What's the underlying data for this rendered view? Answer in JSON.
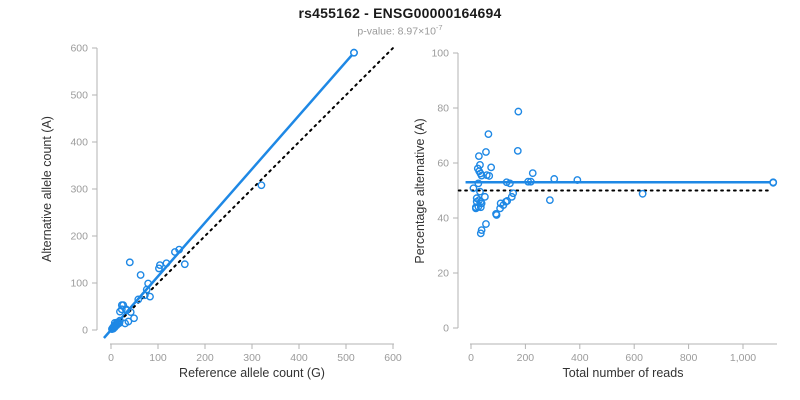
{
  "header": {
    "title": "rs455162 - ENSG00000164694",
    "pvalue_prefix": "p-value: 8.97×10",
    "pvalue_exponent": "-7"
  },
  "colors": {
    "accent_blue": "#1e88e5",
    "identity_line": "#000000",
    "axis": "#b3b3b3",
    "tick_text": "#9b9b9b",
    "label_text": "#333333"
  },
  "chart_data": [
    {
      "type": "scatter",
      "xlabel": "Reference allele count (G)",
      "ylabel": "Alternative allele count (A)",
      "xlim": [
        0,
        600
      ],
      "ylim": [
        0,
        600
      ],
      "grid": false,
      "xticks": [
        0,
        100,
        200,
        300,
        400,
        500,
        600
      ],
      "xtick_labels": [
        "0",
        "100",
        "200",
        "300",
        "400",
        "500",
        "600"
      ],
      "yticks": [
        0,
        100,
        200,
        300,
        400,
        500,
        600
      ],
      "ytick_labels": [
        "0",
        "100",
        "200",
        "300",
        "400",
        "500",
        "600"
      ],
      "points": [
        [
          2,
          2
        ],
        [
          4,
          5
        ],
        [
          5,
          3
        ],
        [
          6,
          7
        ],
        [
          7,
          9
        ],
        [
          8,
          6
        ],
        [
          9,
          11
        ],
        [
          10,
          9
        ],
        [
          11,
          13
        ],
        [
          12,
          10
        ],
        [
          13,
          16
        ],
        [
          15,
          13
        ],
        [
          16,
          17
        ],
        [
          18,
          15
        ],
        [
          19,
          20
        ],
        [
          8,
          15
        ],
        [
          30,
          14
        ],
        [
          37,
          18
        ],
        [
          49,
          25
        ],
        [
          19,
          39
        ],
        [
          23,
          44
        ],
        [
          32,
          44
        ],
        [
          42,
          38
        ],
        [
          23,
          53
        ],
        [
          26,
          53
        ],
        [
          33,
          42
        ],
        [
          40,
          144
        ],
        [
          63,
          117
        ],
        [
          58,
          65
        ],
        [
          72,
          74
        ],
        [
          76,
          86
        ],
        [
          79,
          99
        ],
        [
          83,
          71
        ],
        [
          102,
          131
        ],
        [
          104,
          138
        ],
        [
          118,
          142
        ],
        [
          136,
          166
        ],
        [
          145,
          171
        ],
        [
          157,
          140
        ],
        [
          320,
          308
        ],
        [
          517,
          590
        ]
      ],
      "lines": [
        {
          "name": "regression-line",
          "style": "solid",
          "from": [
            -15,
            -17
          ],
          "to": [
            517,
            590
          ],
          "end_marker": true
        },
        {
          "name": "identity-line",
          "style": "dotted",
          "from": [
            0,
            0
          ],
          "to": [
            600,
            600
          ],
          "end_marker": false
        }
      ]
    },
    {
      "type": "scatter",
      "xlabel": "Total number of reads",
      "ylabel": "Percentage alternative (A)",
      "xlim": [
        0,
        1125
      ],
      "ylim": [
        0,
        100
      ],
      "grid": false,
      "xticks": [
        0,
        200,
        400,
        600,
        800,
        1000
      ],
      "xtick_labels": [
        "0",
        "200",
        "400",
        "600",
        "800",
        "1,000"
      ],
      "yticks": [
        0,
        20,
        40,
        60,
        80,
        100
      ],
      "ytick_labels": [
        "0",
        "20",
        "40",
        "60",
        "80",
        "100"
      ],
      "points": [
        [
          64,
          70.5
        ],
        [
          55,
          64
        ],
        [
          29,
          62.5
        ],
        [
          33,
          59.3
        ],
        [
          25,
          58
        ],
        [
          30,
          57
        ],
        [
          35,
          56.2
        ],
        [
          39,
          55.4
        ],
        [
          74,
          58.4
        ],
        [
          58,
          55.6
        ],
        [
          67,
          55.3
        ],
        [
          27,
          52.6
        ],
        [
          9,
          50.8
        ],
        [
          33,
          49.6
        ],
        [
          51,
          47.7
        ],
        [
          21,
          47.2
        ],
        [
          30,
          46.5
        ],
        [
          39,
          45.3
        ],
        [
          27,
          44.1
        ],
        [
          18,
          43.5
        ],
        [
          21,
          45.9
        ],
        [
          36,
          45.9
        ],
        [
          18,
          43.9
        ],
        [
          36,
          43.9
        ],
        [
          92,
          41.5
        ],
        [
          109,
          45.3
        ],
        [
          128,
          45.9
        ],
        [
          133,
          46.2
        ],
        [
          119,
          44.7
        ],
        [
          107,
          43.5
        ],
        [
          131,
          53
        ],
        [
          143,
          52.6
        ],
        [
          150,
          47.7
        ],
        [
          155,
          49
        ],
        [
          94,
          41.1
        ],
        [
          55,
          37.8
        ],
        [
          36,
          34.4
        ],
        [
          39,
          35.6
        ],
        [
          172,
          64.4
        ],
        [
          174,
          78.7
        ],
        [
          210,
          53.2
        ],
        [
          220,
          53.2
        ],
        [
          227,
          56.3
        ],
        [
          290,
          46.5
        ],
        [
          306,
          54.2
        ],
        [
          391,
          53.8
        ],
        [
          631,
          48.8
        ],
        [
          1111,
          52.8
        ]
      ],
      "lines": [
        {
          "name": "mean-line",
          "style": "solid",
          "from": [
            -20,
            53
          ],
          "to": [
            1111,
            53
          ],
          "end_marker": true
        },
        {
          "name": "reference-line",
          "style": "dotted",
          "from": [
            -45,
            50
          ],
          "to": [
            1100,
            50
          ],
          "end_marker": false
        }
      ]
    }
  ]
}
